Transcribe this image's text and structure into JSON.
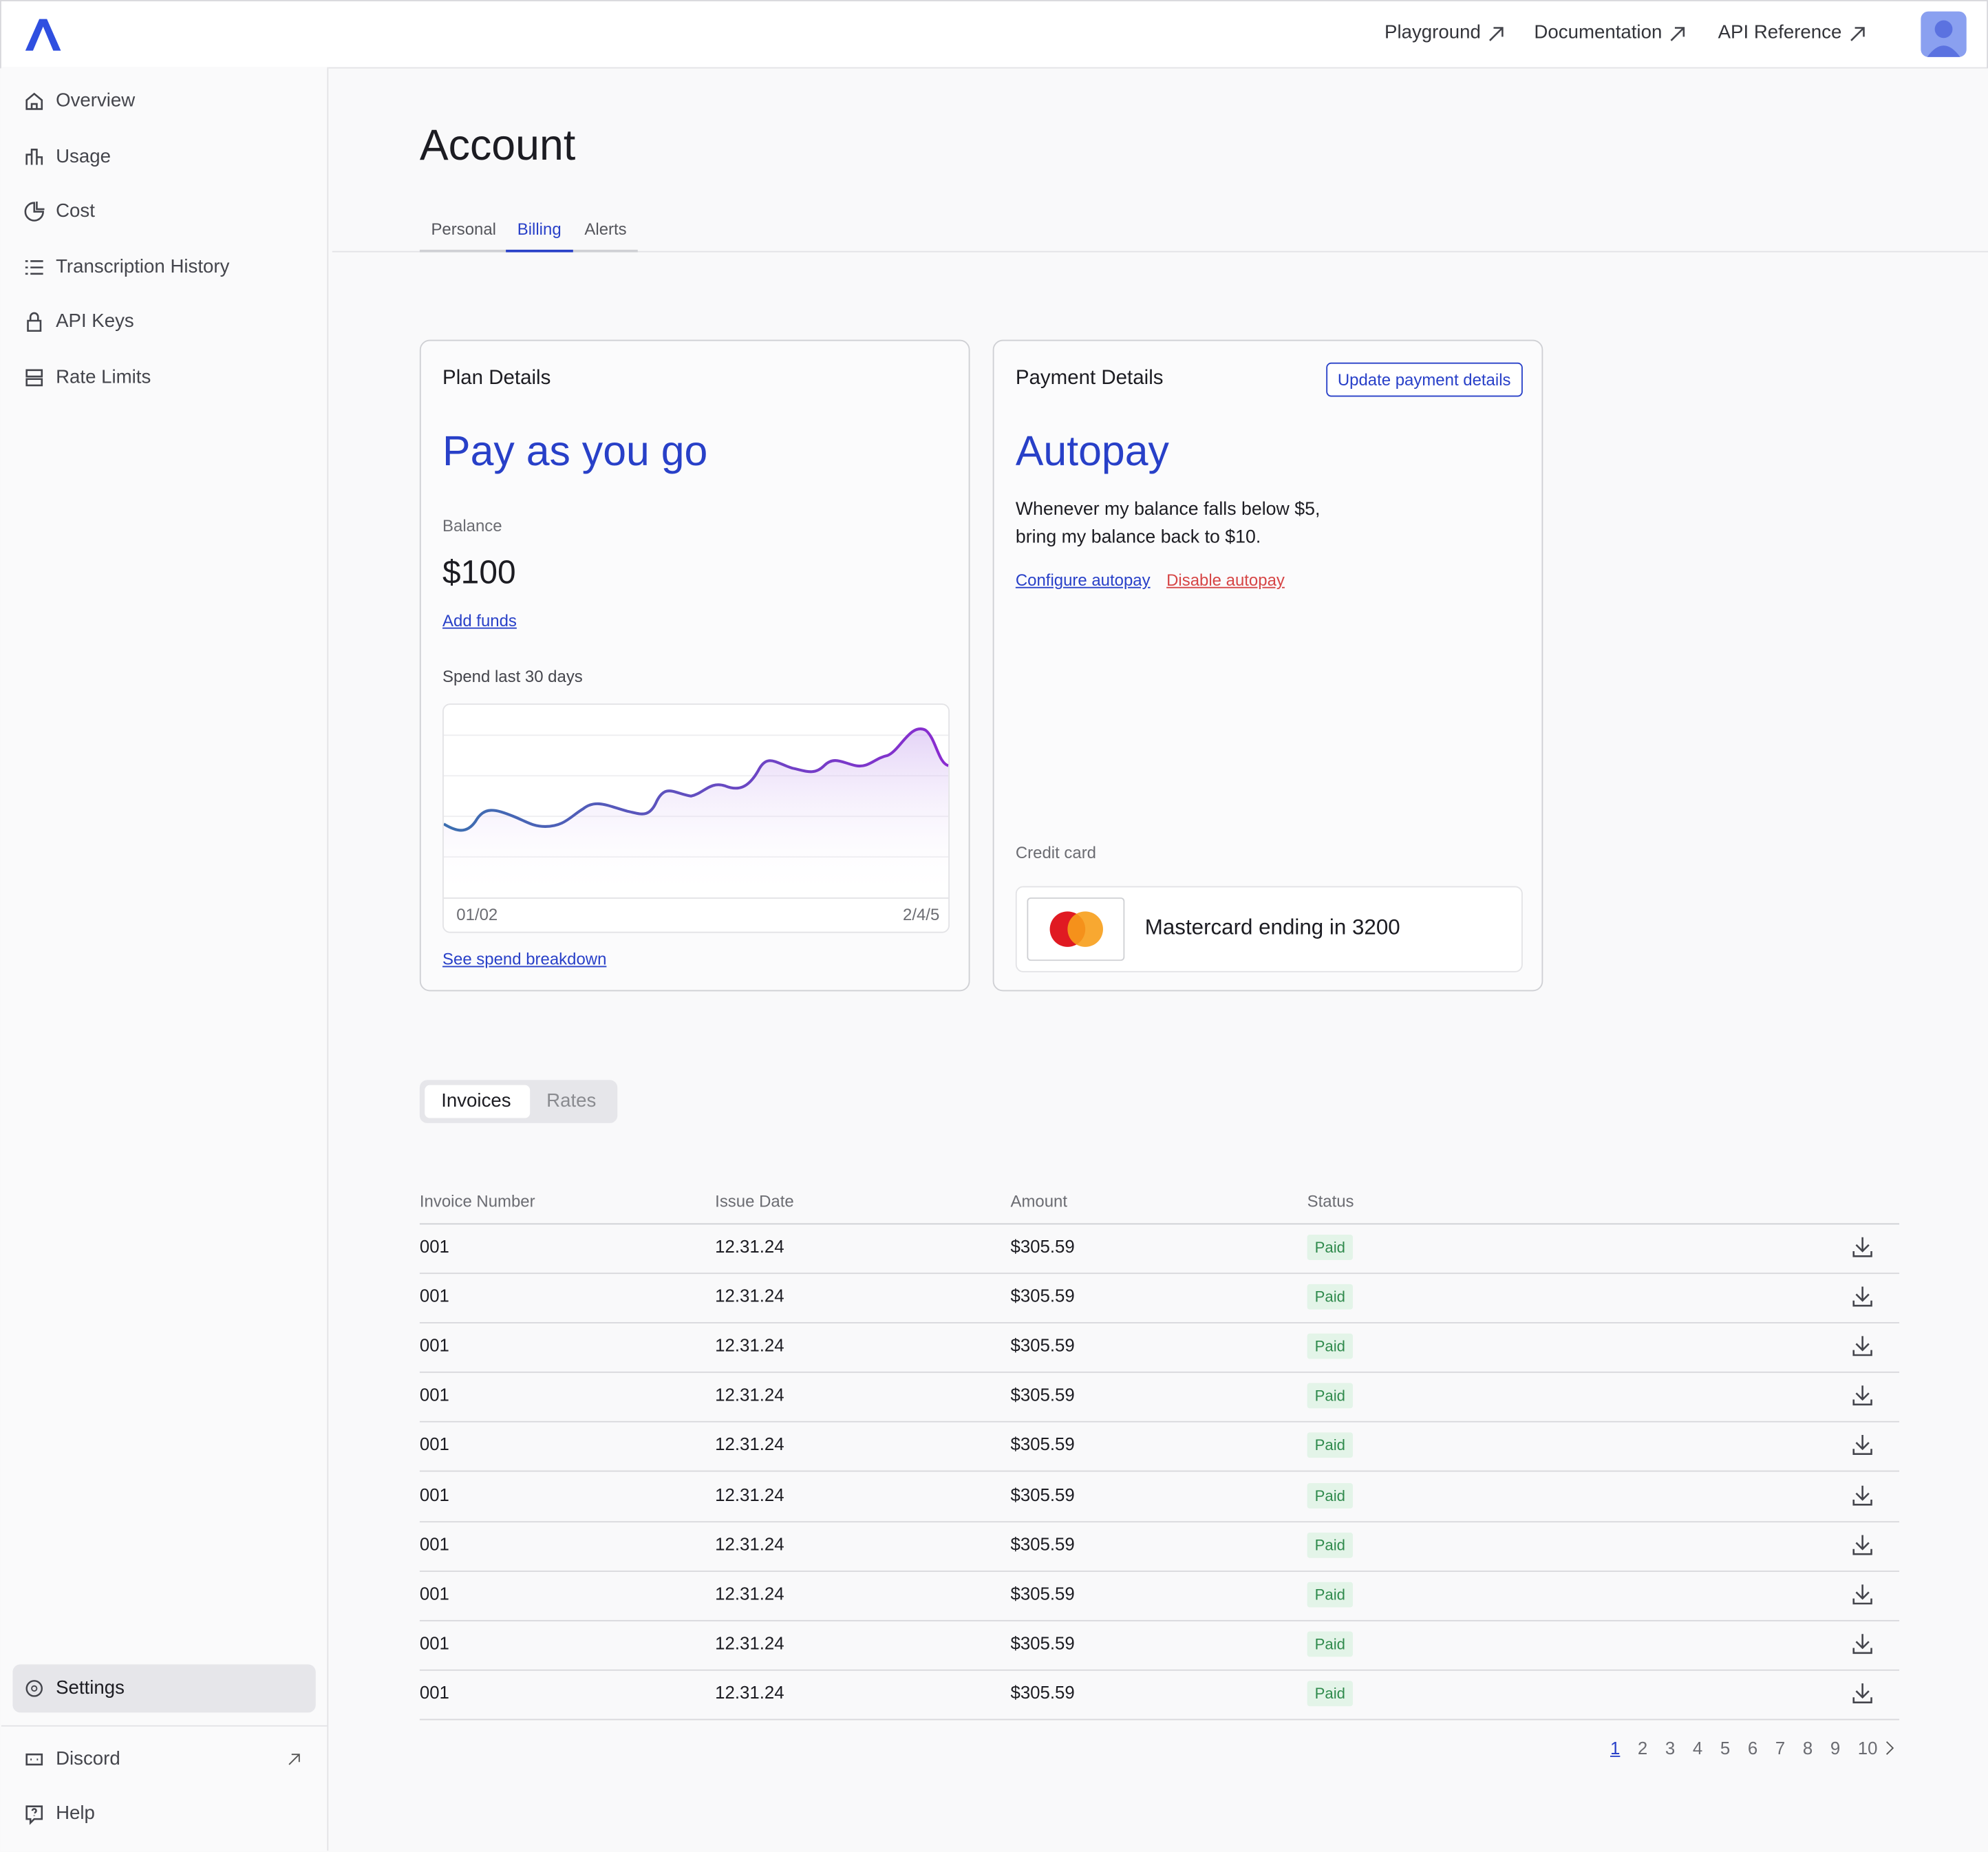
{
  "header": {
    "nav_links": [
      "Playground",
      "Documentation",
      "API Reference"
    ]
  },
  "sidebar": {
    "items": [
      "Overview",
      "Usage",
      "Cost",
      "Transcription History",
      "API Keys",
      "Rate Limits"
    ],
    "settings": "Settings",
    "footer": [
      "Discord",
      "Help"
    ]
  },
  "page": {
    "title": "Account",
    "tabs": [
      "Personal",
      "Billing",
      "Alerts"
    ]
  },
  "plan": {
    "title": "Plan Details",
    "plan_name": "Pay as you go",
    "balance_label": "Balance",
    "balance": "$100",
    "add_funds": "Add funds",
    "spend_label": "Spend last 30 days",
    "chart_start": "01/02",
    "chart_end": "2/4/5",
    "breakdown_link": "See spend breakdown"
  },
  "payment": {
    "title": "Payment Details",
    "update_button": "Update payment details",
    "method": "Autopay",
    "description": [
      "Whenever my balance falls below $5,",
      "bring my balance back to $10."
    ],
    "configure": "Configure autopay",
    "disable": "Disable autopay",
    "card_label": "Credit card",
    "card_text": "Mastercard ending in 3200"
  },
  "invoices": {
    "tabs": [
      "Invoices",
      "Rates"
    ],
    "columns": [
      "Invoice Number",
      "Issue Date",
      "Amount",
      "Status"
    ],
    "rows": [
      [
        "001",
        "12.31.24",
        "$305.59",
        "Paid"
      ],
      [
        "001",
        "12.31.24",
        "$305.59",
        "Paid"
      ],
      [
        "001",
        "12.31.24",
        "$305.59",
        "Paid"
      ],
      [
        "001",
        "12.31.24",
        "$305.59",
        "Paid"
      ],
      [
        "001",
        "12.31.24",
        "$305.59",
        "Paid"
      ],
      [
        "001",
        "12.31.24",
        "$305.59",
        "Paid"
      ],
      [
        "001",
        "12.31.24",
        "$305.59",
        "Paid"
      ],
      [
        "001",
        "12.31.24",
        "$305.59",
        "Paid"
      ],
      [
        "001",
        "12.31.24",
        "$305.59",
        "Paid"
      ],
      [
        "001",
        "12.31.24",
        "$305.59",
        "Paid"
      ]
    ],
    "pagination": [
      1,
      2,
      3,
      4,
      5,
      6,
      7,
      8,
      9,
      10
    ]
  }
}
